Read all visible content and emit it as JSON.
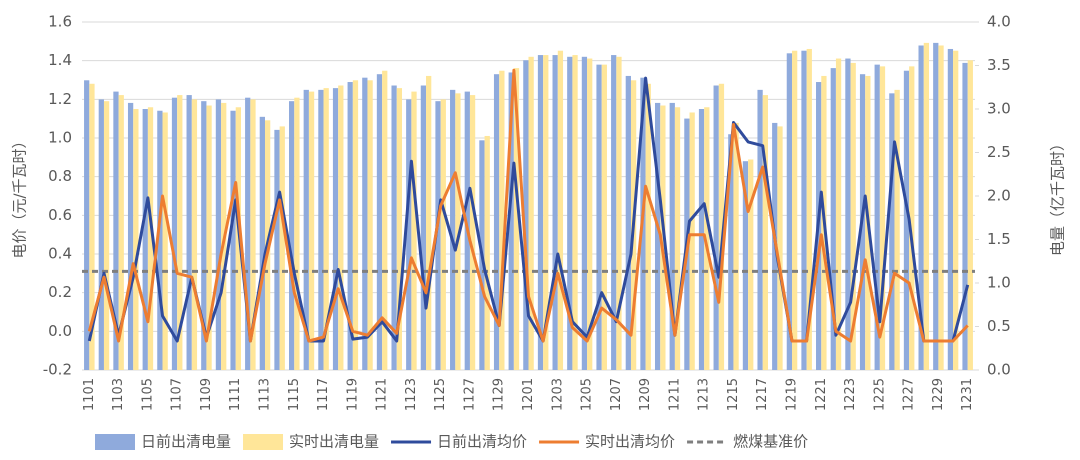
{
  "chart_data": {
    "type": "combo",
    "ylabel": "电价（元/千瓦时）",
    "y2label": "电量（亿千瓦时）",
    "categories": [
      "1101",
      null,
      "1103",
      null,
      "1105",
      null,
      "1107",
      null,
      "1109",
      null,
      "1111",
      null,
      "1113",
      null,
      "1115",
      null,
      "1117",
      null,
      "1119",
      null,
      "1121",
      null,
      "1123",
      null,
      "1125",
      null,
      "1127",
      null,
      "1129",
      null,
      "1201",
      null,
      "1203",
      null,
      "1205",
      null,
      "1207",
      null,
      "1209",
      null,
      "1211",
      null,
      "1213",
      null,
      "1215",
      null,
      "1217",
      null,
      "1219",
      null,
      "1221",
      null,
      "1223",
      null,
      "1225",
      null,
      "1227",
      null,
      "1229",
      null,
      "1231"
    ],
    "ylim": [
      -0.2,
      1.6
    ],
    "yticks": [
      -0.2,
      {
        "value": 0,
        "label": "0.0"
      },
      0.2,
      0.4,
      0.6,
      0.8,
      {
        "value": 1,
        "label": "1.0"
      },
      1.2,
      1.4,
      1.6
    ],
    "y2lim": [
      0,
      4
    ],
    "y2ticks": [
      {
        "value": 0,
        "label": "0.0"
      },
      0.5,
      {
        "value": 1,
        "label": "1.0"
      },
      1.5,
      {
        "value": 2,
        "label": "2.0"
      },
      2.5,
      {
        "value": 3,
        "label": "3.0"
      },
      3.5,
      {
        "value": 4,
        "label": "4.0"
      }
    ],
    "grid": true,
    "legend": "bottom",
    "series": [
      {
        "name": "日前出清电量",
        "type": "bar",
        "axis": "y2",
        "color": "#8faadc",
        "values": [
          3.33,
          3.11,
          3.2,
          3.07,
          3.0,
          2.98,
          3.13,
          3.16,
          3.09,
          3.11,
          2.98,
          3.13,
          2.91,
          2.76,
          3.09,
          3.22,
          3.22,
          3.24,
          3.31,
          3.36,
          3.4,
          3.27,
          3.11,
          3.27,
          3.09,
          3.22,
          3.2,
          2.64,
          3.4,
          3.42,
          3.56,
          3.62,
          3.62,
          3.6,
          3.6,
          3.51,
          3.62,
          3.38,
          3.36,
          3.07,
          3.07,
          2.89,
          3.0,
          3.27,
          2.71,
          2.4,
          3.22,
          2.84,
          3.64,
          3.67,
          3.31,
          3.47,
          3.58,
          3.4,
          3.51,
          3.18,
          3.44,
          3.73,
          3.76,
          3.69,
          3.53
        ]
      },
      {
        "name": "实时出清电量",
        "type": "bar",
        "axis": "y2",
        "color": "#ffe699",
        "values": [
          3.29,
          3.09,
          3.16,
          3.0,
          3.02,
          2.96,
          3.16,
          3.11,
          3.04,
          3.07,
          3.02,
          3.11,
          2.87,
          2.8,
          3.13,
          3.2,
          3.24,
          3.27,
          3.33,
          3.33,
          3.44,
          3.24,
          3.2,
          3.38,
          3.11,
          3.18,
          3.16,
          2.69,
          3.44,
          3.47,
          3.6,
          3.62,
          3.67,
          3.62,
          3.58,
          3.51,
          3.6,
          3.33,
          3.29,
          3.04,
          3.02,
          2.96,
          3.02,
          3.29,
          2.84,
          2.42,
          3.16,
          2.8,
          3.67,
          3.69,
          3.38,
          3.58,
          3.53,
          3.38,
          3.49,
          3.22,
          3.49,
          3.76,
          3.73,
          3.67,
          3.56
        ]
      },
      {
        "name": "日前出清均价",
        "type": "line",
        "color": "#2f4b9c",
        "values": [
          -0.05,
          0.3,
          -0.02,
          0.28,
          0.69,
          0.08,
          -0.05,
          0.28,
          -0.03,
          0.2,
          0.68,
          -0.05,
          0.4,
          0.72,
          0.3,
          -0.05,
          -0.05,
          0.32,
          -0.04,
          -0.03,
          0.05,
          -0.05,
          0.88,
          0.12,
          0.68,
          0.42,
          0.74,
          0.32,
          0.03,
          0.87,
          0.08,
          -0.05,
          0.4,
          0.05,
          -0.03,
          0.2,
          0.05,
          0.4,
          1.31,
          0.68,
          -0.02,
          0.57,
          0.66,
          0.28,
          1.08,
          0.98,
          0.96,
          0.38,
          -0.05,
          -0.05,
          0.72,
          -0.02,
          0.15,
          0.7,
          0.05,
          0.98,
          0.58,
          -0.05,
          -0.05,
          -0.05,
          0.24
        ]
      },
      {
        "name": "实时出清均价",
        "type": "line",
        "color": "#ed7d31",
        "values": [
          0.0,
          0.28,
          -0.05,
          0.35,
          0.05,
          0.7,
          0.3,
          0.28,
          -0.05,
          0.4,
          0.77,
          -0.05,
          0.35,
          0.68,
          0.2,
          -0.05,
          -0.03,
          0.22,
          0.0,
          -0.02,
          0.07,
          -0.01,
          0.38,
          0.2,
          0.65,
          0.82,
          0.47,
          0.18,
          0.03,
          1.35,
          0.18,
          -0.05,
          0.3,
          0.02,
          -0.05,
          0.12,
          0.06,
          -0.02,
          0.75,
          0.5,
          -0.02,
          0.5,
          0.5,
          0.15,
          1.07,
          0.62,
          0.85,
          0.4,
          -0.05,
          -0.05,
          0.5,
          0.0,
          -0.05,
          0.37,
          -0.03,
          0.3,
          0.25,
          -0.05,
          -0.05,
          -0.05,
          0.03
        ]
      }
    ],
    "reference_line": {
      "name": "燃煤基准价",
      "value": 0.31,
      "color": "#7f7f7f"
    }
  }
}
